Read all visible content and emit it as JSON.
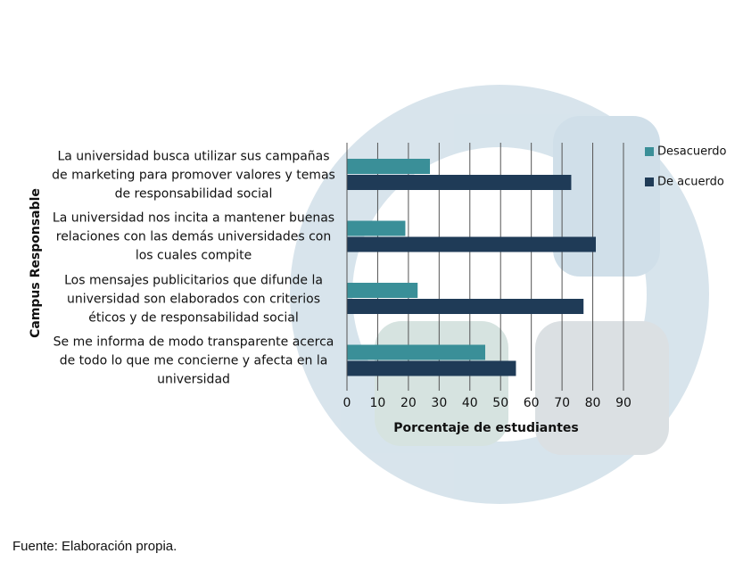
{
  "chart_data": {
    "type": "barh",
    "categories": [
      "La universidad busca utilizar sus campañas de marketing para promover valores y temas de responsabilidad social",
      "La universidad nos incita a mantener buenas relaciones con las demás universidades con los cuales compite",
      "Los mensajes publicitarios que difunde la universidad son elaborados con criterios éticos y de responsabilidad social",
      "Se me informa de modo transparente acerca de todo lo que me concierne y afecta en la universidad"
    ],
    "series": [
      {
        "name": "Desacuerdo",
        "color": "#3a8f98",
        "values": [
          27,
          19,
          23,
          45
        ]
      },
      {
        "name": "De acuerdo",
        "color": "#1f3b57",
        "values": [
          73,
          81,
          77,
          55
        ]
      }
    ],
    "xlim": [
      0,
      90
    ],
    "xticks": [
      0,
      10,
      20,
      30,
      40,
      50,
      60,
      70,
      80,
      90
    ],
    "xlabel": "Porcentaje de estudiantes",
    "ylabel": "Campus Responsable",
    "grid": true,
    "legend": "right",
    "source": "Fuente: Elaboración propia."
  }
}
